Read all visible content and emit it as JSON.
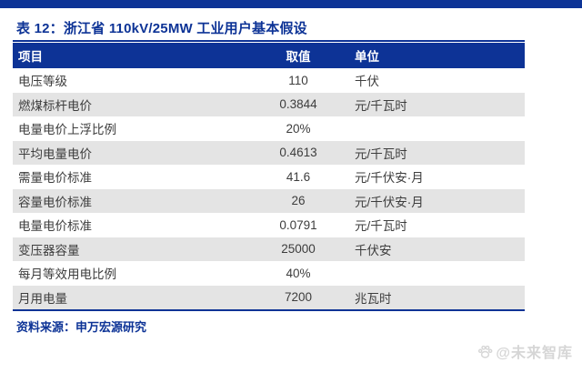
{
  "page": {
    "title": "表 12：浙江省 110kV/25MW 工业用户基本假设",
    "source": "资料来源：申万宏源研究",
    "watermark": "@未来智库"
  },
  "table": {
    "columns": [
      "项目",
      "取值",
      "单位"
    ],
    "rows": [
      {
        "item": "电压等级",
        "value": "110",
        "unit": "千伏"
      },
      {
        "item": "燃煤标杆电价",
        "value": "0.3844",
        "unit": "元/千瓦时"
      },
      {
        "item": "电量电价上浮比例",
        "value": "20%",
        "unit": ""
      },
      {
        "item": "平均电量电价",
        "value": "0.4613",
        "unit": "元/千瓦时"
      },
      {
        "item": "需量电价标准",
        "value": "41.6",
        "unit": "元/千伏安·月"
      },
      {
        "item": "容量电价标准",
        "value": "26",
        "unit": "元/千伏安·月"
      },
      {
        "item": "电量电价标准",
        "value": "0.0791",
        "unit": "元/千瓦时"
      },
      {
        "item": "变压器容量",
        "value": "25000",
        "unit": "千伏安"
      },
      {
        "item": "每月等效用电比例",
        "value": "40%",
        "unit": ""
      },
      {
        "item": "月用电量",
        "value": "7200",
        "unit": "兆瓦时"
      }
    ]
  },
  "colors": {
    "accent_navy": "#0d3396",
    "row_alt_gray": "#e4e4e4",
    "body_text": "#3d3d3d",
    "watermark_gray": "#d6d6d6"
  },
  "icons": {
    "watermark_logo": "paw-icon"
  }
}
